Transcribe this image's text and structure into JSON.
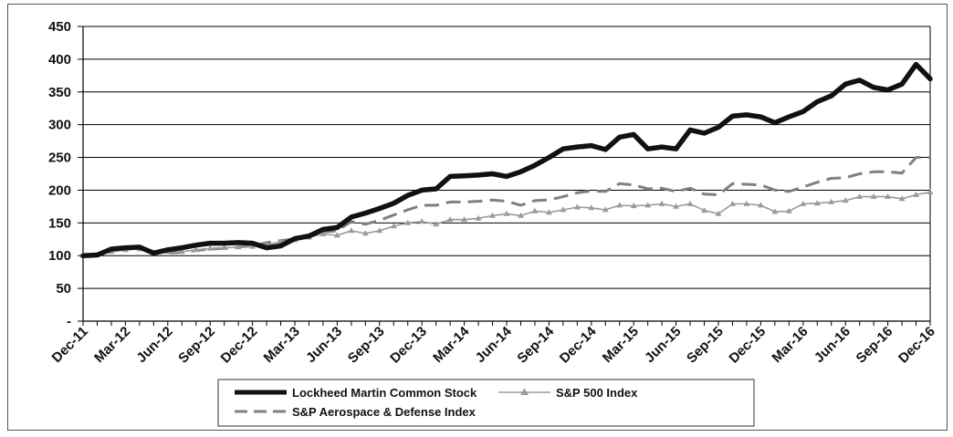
{
  "chart_data": {
    "type": "line",
    "title": "",
    "xlabel": "",
    "ylabel": "",
    "ylim": [
      0,
      450
    ],
    "yticks": [
      "-",
      "50",
      "100",
      "150",
      "200",
      "250",
      "300",
      "350",
      "400",
      "450"
    ],
    "y_tick_values": [
      0,
      50,
      100,
      150,
      200,
      250,
      300,
      350,
      400,
      450
    ],
    "x_tick_labels": [
      "Dec-11",
      "Mar-12",
      "Jun-12",
      "Sep-12",
      "Dec-12",
      "Mar-13",
      "Jun-13",
      "Sep-13",
      "Dec-13",
      "Mar-14",
      "Jun-14",
      "Sep-14",
      "Dec-14",
      "Mar-15",
      "Jun-15",
      "Sep-15",
      "Dec-15",
      "Mar-16",
      "Jun-16",
      "Sep-16",
      "Dec-16"
    ],
    "x_months": [
      "Dec-11",
      "Jan-12",
      "Feb-12",
      "Mar-12",
      "Apr-12",
      "May-12",
      "Jun-12",
      "Jul-12",
      "Aug-12",
      "Sep-12",
      "Oct-12",
      "Nov-12",
      "Dec-12",
      "Jan-13",
      "Feb-13",
      "Mar-13",
      "Apr-13",
      "May-13",
      "Jun-13",
      "Jul-13",
      "Aug-13",
      "Sep-13",
      "Oct-13",
      "Nov-13",
      "Dec-13",
      "Jan-14",
      "Feb-14",
      "Mar-14",
      "Apr-14",
      "May-14",
      "Jun-14",
      "Jul-14",
      "Aug-14",
      "Sep-14",
      "Oct-14",
      "Nov-14",
      "Dec-14",
      "Jan-15",
      "Feb-15",
      "Mar-15",
      "Apr-15",
      "May-15",
      "Jun-15",
      "Jul-15",
      "Aug-15",
      "Sep-15",
      "Oct-15",
      "Nov-15",
      "Dec-15",
      "Jan-16",
      "Feb-16",
      "Mar-16",
      "Apr-16",
      "May-16",
      "Jun-16",
      "Jul-16",
      "Aug-16",
      "Sep-16",
      "Oct-16",
      "Nov-16",
      "Dec-16"
    ],
    "grid": "horizontal",
    "legend_position": "bottom",
    "series": [
      {
        "name": "Lockheed Martin Common Stock",
        "style": "solid-thick",
        "color": "#111111",
        "values": [
          100,
          101,
          110,
          112,
          113,
          104,
          109,
          112,
          116,
          119,
          119,
          120,
          119,
          112,
          115,
          126,
          130,
          140,
          143,
          159,
          165,
          172,
          180,
          192,
          200,
          202,
          221,
          222,
          223,
          225,
          221,
          228,
          238,
          250,
          263,
          266,
          268,
          262,
          281,
          285,
          263,
          266,
          263,
          292,
          287,
          296,
          313,
          315,
          312,
          303,
          312,
          320,
          335,
          344,
          362,
          368,
          357,
          353,
          362,
          392,
          370
        ]
      },
      {
        "name": "S&P 500 Index",
        "style": "solid-thin-triangle",
        "color": "#9a9a9a",
        "values": [
          100,
          101,
          106,
          109,
          110,
          104,
          106,
          106,
          109,
          111,
          112,
          113,
          114,
          117,
          121,
          124,
          128,
          133,
          131,
          138,
          134,
          138,
          145,
          150,
          152,
          148,
          155,
          155,
          157,
          161,
          164,
          161,
          168,
          166,
          170,
          174,
          173,
          170,
          177,
          176,
          177,
          179,
          175,
          179,
          169,
          164,
          179,
          179,
          177,
          167,
          168,
          179,
          180,
          182,
          184,
          190,
          190,
          190,
          187,
          193,
          197
        ]
      },
      {
        "name": "S&P Aerospace & Defense Index",
        "style": "dashed",
        "color": "#808080",
        "values": [
          100,
          102,
          107,
          110,
          112,
          106,
          104,
          105,
          108,
          110,
          111,
          113,
          115,
          120,
          123,
          126,
          130,
          136,
          138,
          152,
          148,
          154,
          162,
          170,
          177,
          177,
          182,
          182,
          183,
          185,
          183,
          177,
          184,
          185,
          190,
          196,
          199,
          198,
          210,
          208,
          202,
          203,
          198,
          203,
          194,
          193,
          210,
          209,
          208,
          200,
          198,
          205,
          212,
          218,
          219,
          225,
          228,
          228,
          226,
          250,
          250
        ]
      }
    ]
  }
}
